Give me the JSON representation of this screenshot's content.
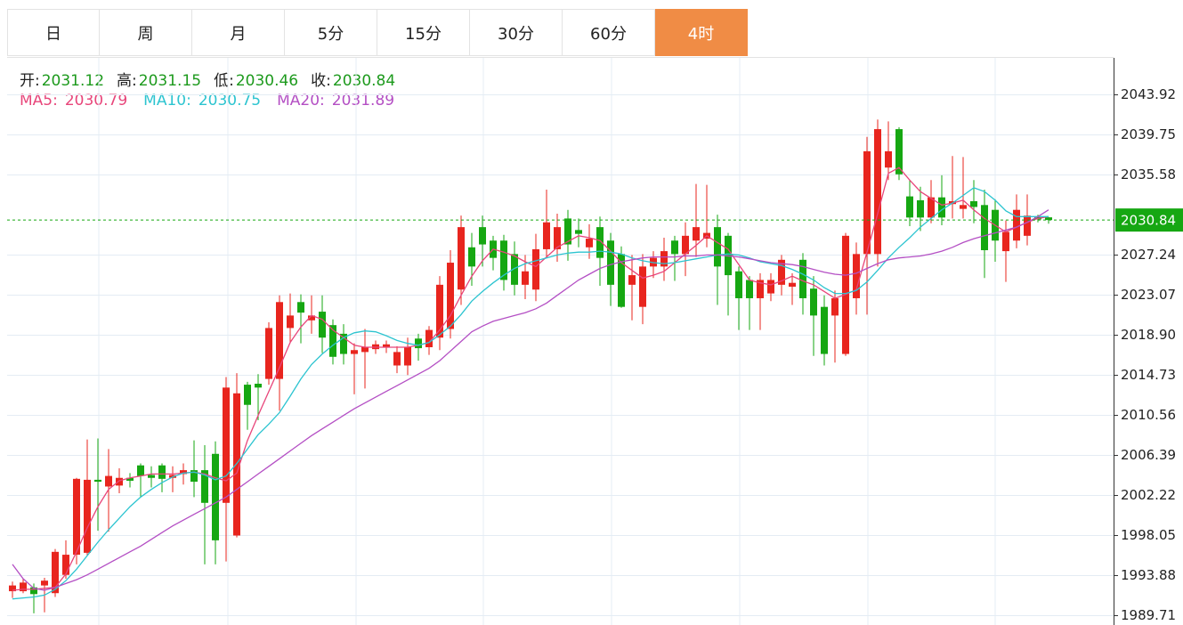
{
  "tabs": {
    "items": [
      "日",
      "周",
      "月",
      "5分",
      "15分",
      "30分",
      "60分",
      "4时"
    ],
    "active": 7
  },
  "info": [
    {
      "label": "开:",
      "value": 2031.12
    },
    {
      "label": "高:",
      "value": 2031.15
    },
    {
      "label": "低:",
      "value": 2030.46
    },
    {
      "label": "收:",
      "value": 2030.84
    }
  ],
  "chart_data": {
    "type": "candlestick",
    "up_color": "#e8251e",
    "down_color": "#16a712",
    "ylim": [
      1988.87,
      2047.72
    ],
    "yticks": [
      1989.71,
      1993.88,
      1998.05,
      2002.22,
      2006.39,
      2010.56,
      2014.73,
      {
        "value": 2018.9,
        "label": "2018.90"
      },
      2023.07,
      2027.24,
      2035.58,
      2039.75,
      2043.92
    ],
    "grid": true,
    "last_price": 2030.84,
    "candles": {
      "open": [
        1992.2,
        1992.2,
        1992.6,
        1992.8,
        1992,
        1993.9,
        1996,
        1996.2,
        2003.8,
        2003.1,
        2003.2,
        2004,
        2005.3,
        2004.3,
        2005.3,
        2004,
        2004.4,
        2004.8,
        2004.8,
        2006.5,
        2001.4,
        1998,
        2013.7,
        2013.8,
        2014.3,
        2014.3,
        2019.6,
        2022.3,
        2020.4,
        2021.3,
        2019.9,
        2019,
        2016.9,
        2017.1,
        2017.4,
        2017.6,
        2015.7,
        2015.7,
        2018.5,
        2017.6,
        2018.6,
        2019.5,
        2023.6,
        2028,
        2030.1,
        2028.7,
        2028.7,
        2027.3,
        2024.1,
        2023.6,
        2027.8,
        2027.8,
        2031,
        2029.8,
        2028,
        2030.1,
        2028.7,
        2027.3,
        2024.1,
        2021.8,
        2026,
        2026,
        2028.7,
        2027.3,
        2028.7,
        2028.9,
        2030.1,
        2029.2,
        2025.5,
        2024.6,
        2022.7,
        2023.2,
        2024.1,
        2023.9,
        2026.7,
        2023.7,
        2021.8,
        2020.9,
        2016.9,
        2022.7,
        2027.3,
        2027.3,
        2036.3,
        2040.3,
        2033.3,
        2032.9,
        2031.1,
        2033.2,
        2032.5,
        2032,
        2032.8,
        2032.4,
        2031.9,
        2027.6,
        2028.7,
        2029.2,
        2031.2,
        2031.12
      ],
      "high": [
        1993.2,
        1993.5,
        1993,
        1993.6,
        1996.6,
        1997.5,
        2004,
        2008,
        2008.1,
        2007,
        2005,
        2004.5,
        2005.5,
        2005.2,
        2005.5,
        2005.2,
        2005.5,
        2007.9,
        2007.4,
        2007.8,
        2014.5,
        2014.9,
        2014,
        2014.8,
        2020.2,
        2023,
        2023.2,
        2023.1,
        2023,
        2023,
        2020.5,
        2020,
        2018,
        2019.5,
        2018.3,
        2018.3,
        2017.7,
        2018.6,
        2019,
        2019.8,
        2025,
        2027.7,
        2031.3,
        2029.5,
        2031.3,
        2029.2,
        2029.3,
        2028.6,
        2027.2,
        2029.4,
        2034,
        2031.5,
        2031.9,
        2031,
        2030.4,
        2031.2,
        2029.5,
        2028.1,
        2027.2,
        2027.3,
        2027.6,
        2029,
        2029.2,
        2030.6,
        2034.6,
        2034.5,
        2031.4,
        2029.5,
        2026,
        2025,
        2025.3,
        2025.3,
        2027.2,
        2025.3,
        2027.4,
        2025,
        2023,
        2023.5,
        2029.5,
        2028.5,
        2039.5,
        2041.3,
        2041.1,
        2040.5,
        2035,
        2034.3,
        2035,
        2035.5,
        2037.5,
        2037.4,
        2035,
        2034,
        2033,
        2030.8,
        2033.5,
        2033.5,
        2031.4,
        2031.15
      ],
      "low": [
        1991.5,
        1992,
        1989.9,
        1990,
        1991.6,
        1993.5,
        1995,
        1995.9,
        1998.5,
        1998.4,
        2002.4,
        2003,
        2002,
        2003,
        2002.5,
        2002.5,
        2003.3,
        2002,
        1995,
        1995,
        1995.3,
        1997.8,
        2009,
        2010,
        2013.7,
        2011,
        2018,
        2018,
        2019,
        2017,
        2015.8,
        2015.8,
        2012.7,
        2013.3,
        2016.9,
        2017,
        2014.9,
        2014.7,
        2016.2,
        2016.8,
        2017.3,
        2018.5,
        2022,
        2024,
        2026,
        2025.6,
        2023.5,
        2023,
        2022.6,
        2022.4,
        2027,
        2026.5,
        2026.6,
        2028,
        2026.8,
        2024,
        2021.9,
        2021.7,
        2020.4,
        2020,
        2024.8,
        2024.5,
        2024.5,
        2025,
        2027,
        2028,
        2022,
        2020.9,
        2019.4,
        2019.4,
        2019.4,
        2022.4,
        2023,
        2022,
        2021,
        2016.7,
        2015.7,
        2016,
        2016.7,
        2021,
        2021,
        2026,
        2035,
        2035,
        2030.2,
        2029.7,
        2030.5,
        2030.3,
        2031,
        2031,
        2030.5,
        2024.8,
        2026.5,
        2024.4,
        2027.9,
        2028.2,
        2030.6,
        2030.46
      ],
      "close": [
        1992.8,
        1993.1,
        1991.9,
        1993.3,
        1996.3,
        1996,
        2003.9,
        2003.8,
        2003.6,
        2004.2,
        2004,
        2003.7,
        2004.2,
        2004,
        2003.9,
        2004.3,
        2004.8,
        2003.6,
        2001.4,
        1997.5,
        2013.4,
        2012.8,
        2011.6,
        2013.4,
        2019.6,
        2022.3,
        2020.9,
        2021.2,
        2020.9,
        2018.6,
        2016.6,
        2016.9,
        2017.3,
        2017.6,
        2017.9,
        2017.9,
        2017.1,
        2017.6,
        2017.5,
        2019.4,
        2024.1,
        2026.4,
        2030.1,
        2026,
        2028.3,
        2026.9,
        2024.6,
        2024.1,
        2025.5,
        2027.8,
        2030.6,
        2030.1,
        2028.3,
        2029.4,
        2028.9,
        2026.9,
        2024.1,
        2021.8,
        2025.1,
        2026,
        2026.9,
        2027.6,
        2027.3,
        2029.2,
        2030.1,
        2029.5,
        2026,
        2025.1,
        2022.7,
        2022.7,
        2024.6,
        2024.6,
        2026.7,
        2024.3,
        2022.7,
        2020.9,
        2016.9,
        2022.7,
        2029.2,
        2027.3,
        2038,
        2040.3,
        2038,
        2035.6,
        2031.1,
        2031.1,
        2033.2,
        2031.1,
        2032.8,
        2032.4,
        2032.2,
        2027.7,
        2028.7,
        2029.6,
        2031.9,
        2031.3,
        2030.9,
        2030.84
      ]
    },
    "series": [
      {
        "name": "MA5:",
        "color": "#e8457a",
        "current": 2030.79,
        "values": [
          1992.3,
          1992.4,
          1992.4,
          1992.5,
          1992.6,
          1994,
          1996.3,
          1998.8,
          2001,
          2002.8,
          2003.7,
          2004,
          2004.2,
          2004.4,
          2004.4,
          2004.4,
          2004.5,
          2004.6,
          2004.4,
          2004,
          2003.7,
          2004.5,
          2007.9,
          2010.5,
          2013,
          2015.5,
          2018.1,
          2019.7,
          2020.9,
          2020.5,
          2019.4,
          2018.6,
          2017.8,
          2017.6,
          2017.6,
          2017.6,
          2017.6,
          2017.6,
          2017.8,
          2018.1,
          2019.4,
          2020.9,
          2023,
          2025,
          2026.6,
          2027.8,
          2027.5,
          2027.1,
          2026.5,
          2026,
          2027,
          2028,
          2028.6,
          2029.2,
          2029,
          2028.7,
          2027.6,
          2026.4,
          2025.6,
          2024.8,
          2025.1,
          2025.5,
          2026.4,
          2027.3,
          2028.2,
          2029.2,
          2028.5,
          2027.8,
          2026.2,
          2024.6,
          2024.3,
          2024.1,
          2024.5,
          2025,
          2024.5,
          2024.1,
          2023.4,
          2022.7,
          2023.1,
          2023.6,
          2027.5,
          2031.5,
          2035.7,
          2036.3,
          2035,
          2033.8,
          2033.1,
          2032.4,
          2032.6,
          2032.9,
          2031.9,
          2031,
          2030.3,
          2029.6,
          2030.1,
          2030.6,
          2031,
          2031.2
        ]
      },
      {
        "name": "MA10:",
        "color": "#2cc4d0",
        "current": 2030.75,
        "values": [
          1991.4,
          1991.5,
          1991.6,
          1991.8,
          1992.4,
          1993.3,
          1994.5,
          1995.9,
          1997.3,
          1998.6,
          1999.8,
          2001,
          2002,
          2002.8,
          2003.5,
          2004.1,
          2004.5,
          2004.6,
          2004.3,
          2003.8,
          2004.2,
          2005.5,
          2007,
          2008.5,
          2009.6,
          2010.8,
          2012.5,
          2014.3,
          2015.8,
          2016.9,
          2017.8,
          2018.6,
          2019.1,
          2019.3,
          2019.2,
          2018.8,
          2018.3,
          2018,
          2017.8,
          2018.1,
          2018.9,
          2019.8,
          2021,
          2022.4,
          2023.4,
          2024.3,
          2025.1,
          2025.8,
          2026.3,
          2026.6,
          2026.9,
          2027.2,
          2027.4,
          2027.5,
          2027.5,
          2027.6,
          2027.5,
          2027.3,
          2026.9,
          2026.6,
          2026.4,
          2026.3,
          2026.4,
          2026.6,
          2026.8,
          2027,
          2027.2,
          2027.3,
          2027.2,
          2026.9,
          2026.5,
          2026.3,
          2026.1,
          2025.7,
          2025.2,
          2024.6,
          2023.8,
          2023.2,
          2023.2,
          2023.5,
          2024.4,
          2025.6,
          2026.9,
          2028,
          2029,
          2030.1,
          2031,
          2031.9,
          2032.6,
          2033.4,
          2034.2,
          2033.8,
          2032.9,
          2031.8,
          2031.2,
          2031.2,
          2031.2,
          2031.2
        ]
      },
      {
        "name": "MA20:",
        "color": "#b44fc4",
        "current": 2031.89,
        "values": [
          1995,
          1993.5,
          1992.5,
          1992.3,
          1992.6,
          1993,
          1993.4,
          1993.9,
          1994.5,
          1995.1,
          1995.7,
          1996.3,
          1996.9,
          1997.6,
          1998.3,
          1999,
          1999.6,
          2000.2,
          2000.8,
          2001.4,
          2002,
          2002.8,
          2003.6,
          2004.4,
          2005.2,
          2006,
          2006.8,
          2007.6,
          2008.4,
          2009.1,
          2009.8,
          2010.5,
          2011.2,
          2011.8,
          2012.4,
          2013,
          2013.6,
          2014.2,
          2014.8,
          2015.4,
          2016.2,
          2017.2,
          2018.2,
          2019.2,
          2019.8,
          2020.3,
          2020.6,
          2020.9,
          2021.2,
          2021.6,
          2022.2,
          2023,
          2023.8,
          2024.6,
          2025.2,
          2025.8,
          2026.2,
          2026.5,
          2026.7,
          2026.9,
          2027,
          2027,
          2027,
          2027.1,
          2027.1,
          2027.2,
          2027.2,
          2027.1,
          2027,
          2026.8,
          2026.6,
          2026.4,
          2026.3,
          2026.2,
          2026,
          2025.7,
          2025.4,
          2025.2,
          2025.1,
          2025.3,
          2025.8,
          2026.3,
          2026.7,
          2026.9,
          2027,
          2027.1,
          2027.3,
          2027.6,
          2028,
          2028.5,
          2028.9,
          2029.2,
          2029.5,
          2029.8,
          2030.1,
          2030.6,
          2031.2,
          2031.9
        ]
      }
    ]
  }
}
